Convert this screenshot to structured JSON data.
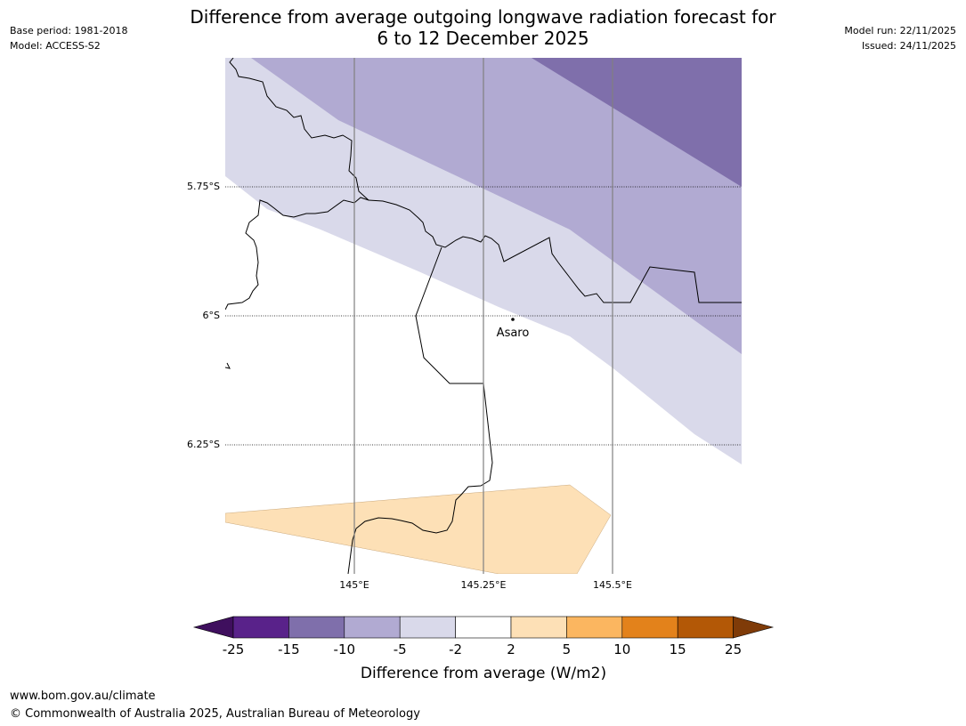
{
  "title": {
    "line1": "Difference from average outgoing longwave radiation forecast for",
    "line2": "6 to 12 December 2025"
  },
  "meta_left": {
    "base_period": "Base period: 1981-2018",
    "model": "Model: ACCESS-S2"
  },
  "meta_right": {
    "model_run": "Model run: 22/11/2025",
    "issued": "Issued: 24/11/2025"
  },
  "map": {
    "lat_labels": [
      "5.75°S",
      "6°S",
      "6.25°S"
    ],
    "lon_labels": [
      "145°E",
      "145.25°E",
      "145.5°E"
    ],
    "place": "Asaro"
  },
  "legend": {
    "ticks": [
      "-25",
      "-15",
      "-10",
      "-5",
      "-2",
      "2",
      "5",
      "10",
      "15",
      "25"
    ],
    "colors": [
      "#3f0f5e",
      "#59228a",
      "#7f6fab",
      "#b1aad2",
      "#d9d9ea",
      "#ffffff",
      "#fde0b6",
      "#fbb660",
      "#e3821b",
      "#b35806",
      "#7f3b08"
    ],
    "label": "Difference from average (W/m2)"
  },
  "footer": {
    "url": "www.bom.gov.au/climate",
    "copyright": "© Commonwealth of Australia 2025, Australian Bureau of Meteorology"
  }
}
